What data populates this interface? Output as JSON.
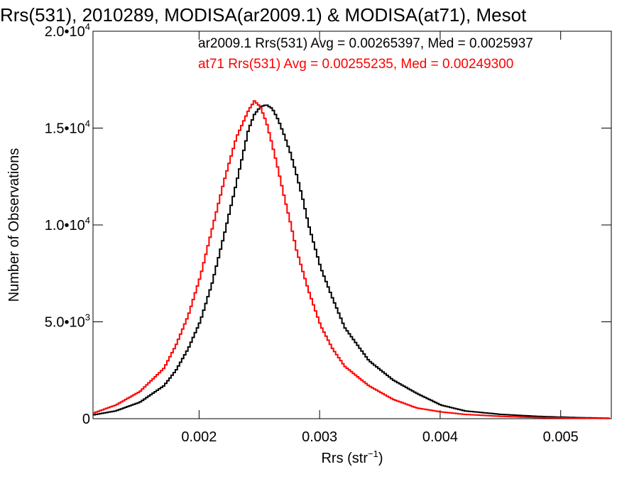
{
  "chart_data": {
    "type": "line",
    "title": "Rrs(531), 2010289, MODISA(ar2009.1) & MODISA(at71), Mesot",
    "xlabel": "Rrs (str",
    "xlabel_sup": "−1",
    "xlabel_end": ")",
    "ylabel": "Number of Observations",
    "xlim": [
      0.00112,
      0.00542
    ],
    "ylim": [
      0,
      20000
    ],
    "x_ticks": [
      {
        "value": 0.002,
        "label": "0.002"
      },
      {
        "value": 0.003,
        "label": "0.003"
      },
      {
        "value": 0.004,
        "label": "0.004"
      },
      {
        "value": 0.005,
        "label": "0.005"
      }
    ],
    "y_ticks": [
      {
        "value": 0,
        "label": "0",
        "sup": ""
      },
      {
        "value": 5000,
        "label": "5.0•10",
        "sup": "3"
      },
      {
        "value": 10000,
        "label": "1.0•10",
        "sup": "4"
      },
      {
        "value": 15000,
        "label": "1.5•10",
        "sup": "4"
      },
      {
        "value": 20000,
        "label": "2.0•10",
        "sup": "4"
      }
    ],
    "grid": false,
    "legend_position": "top-right",
    "series": [
      {
        "name": "ar2009.1 Rrs(531) Avg = 0.00265397, Med = 0.0025937",
        "color": "#000000",
        "x": [
          0.00112,
          0.0013,
          0.0015,
          0.0017,
          0.0018,
          0.0019,
          0.002,
          0.0021,
          0.0022,
          0.00228,
          0.00235,
          0.0024,
          0.00245,
          0.0025,
          0.00255,
          0.0026,
          0.00265,
          0.0027,
          0.00275,
          0.0028,
          0.00285,
          0.0029,
          0.003,
          0.0031,
          0.0032,
          0.0034,
          0.0036,
          0.0038,
          0.004,
          0.0042,
          0.0045,
          0.0048,
          0.0051,
          0.00542
        ],
        "values": [
          200,
          400,
          850,
          1700,
          2500,
          3600,
          5000,
          7000,
          9500,
          11600,
          13500,
          14900,
          15700,
          16100,
          16200,
          16000,
          15400,
          14600,
          13700,
          12600,
          11400,
          10000,
          7800,
          6200,
          4700,
          3000,
          2000,
          1300,
          700,
          400,
          220,
          120,
          60,
          20
        ]
      },
      {
        "name": "at71 Rrs(531) Avg = 0.00255235, Med = 0.00249300",
        "color": "#ff0000",
        "x": [
          0.00112,
          0.0013,
          0.0015,
          0.0017,
          0.0018,
          0.0019,
          0.002,
          0.0021,
          0.0022,
          0.0023,
          0.0024,
          0.00245,
          0.0025,
          0.00255,
          0.0026,
          0.00265,
          0.0027,
          0.00275,
          0.0028,
          0.0029,
          0.003,
          0.0031,
          0.0032,
          0.0034,
          0.0036,
          0.0038,
          0.004,
          0.0042,
          0.0045,
          0.0048,
          0.0051,
          0.00542
        ],
        "values": [
          300,
          700,
          1400,
          2600,
          3800,
          5300,
          7300,
          9800,
          12300,
          14500,
          15900,
          16400,
          16100,
          15300,
          14100,
          12800,
          11400,
          10100,
          8700,
          6600,
          4800,
          3600,
          2700,
          1700,
          1000,
          550,
          350,
          220,
          120,
          60,
          30,
          10
        ]
      }
    ]
  }
}
